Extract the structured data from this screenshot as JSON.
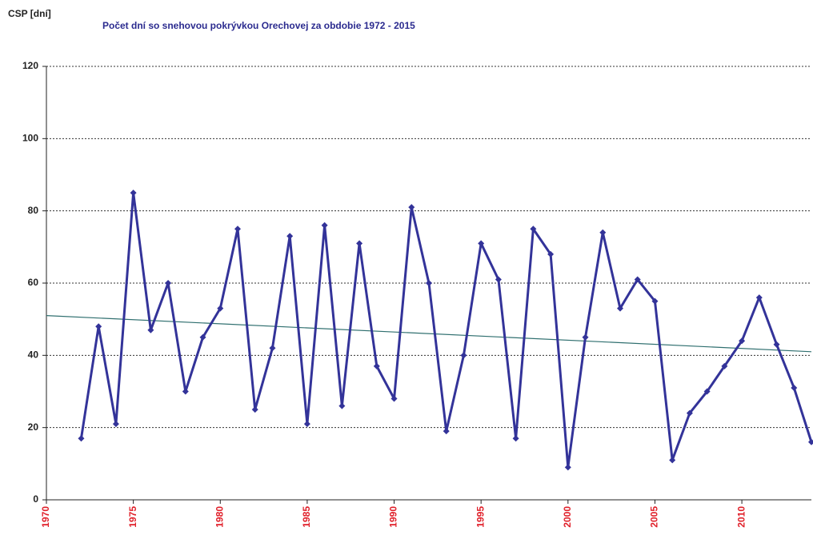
{
  "chart_data": {
    "type": "line",
    "title": "Počet dní so snehovou pokrývkou Orechovej za obdobie 1972 - 2015",
    "y_label": "CSP [dní]",
    "x": [
      1972,
      1973,
      1974,
      1975,
      1976,
      1977,
      1978,
      1979,
      1980,
      1981,
      1982,
      1983,
      1984,
      1985,
      1986,
      1987,
      1988,
      1989,
      1990,
      1991,
      1992,
      1993,
      1994,
      1995,
      1996,
      1997,
      1998,
      1999,
      2000,
      2001,
      2002,
      2003,
      2004,
      2005,
      2006,
      2007,
      2008,
      2009,
      2010,
      2011,
      2012,
      2013,
      2014
    ],
    "series": [
      {
        "color": "#333399",
        "values": [
          17,
          48,
          21,
          85,
          47,
          60,
          30,
          45,
          53,
          75,
          25,
          42,
          73,
          21,
          76,
          26,
          71,
          37,
          28,
          81,
          60,
          19,
          40,
          71,
          61,
          17,
          75,
          68,
          9,
          45,
          74,
          53,
          61,
          55,
          11,
          24,
          30,
          37,
          44,
          56,
          43,
          31,
          16
        ]
      }
    ],
    "trendline": {
      "x": [
        1970,
        2014
      ],
      "values": [
        51,
        41
      ],
      "color": "#2f6f6f"
    },
    "xlim": [
      1970,
      2014
    ],
    "xticks": [
      1970,
      1975,
      1980,
      1985,
      1990,
      1995,
      2000,
      2005,
      2010
    ],
    "ylim": [
      0,
      120
    ],
    "yticks": [
      0,
      20,
      40,
      60,
      80,
      100,
      120
    ],
    "grid": true
  }
}
